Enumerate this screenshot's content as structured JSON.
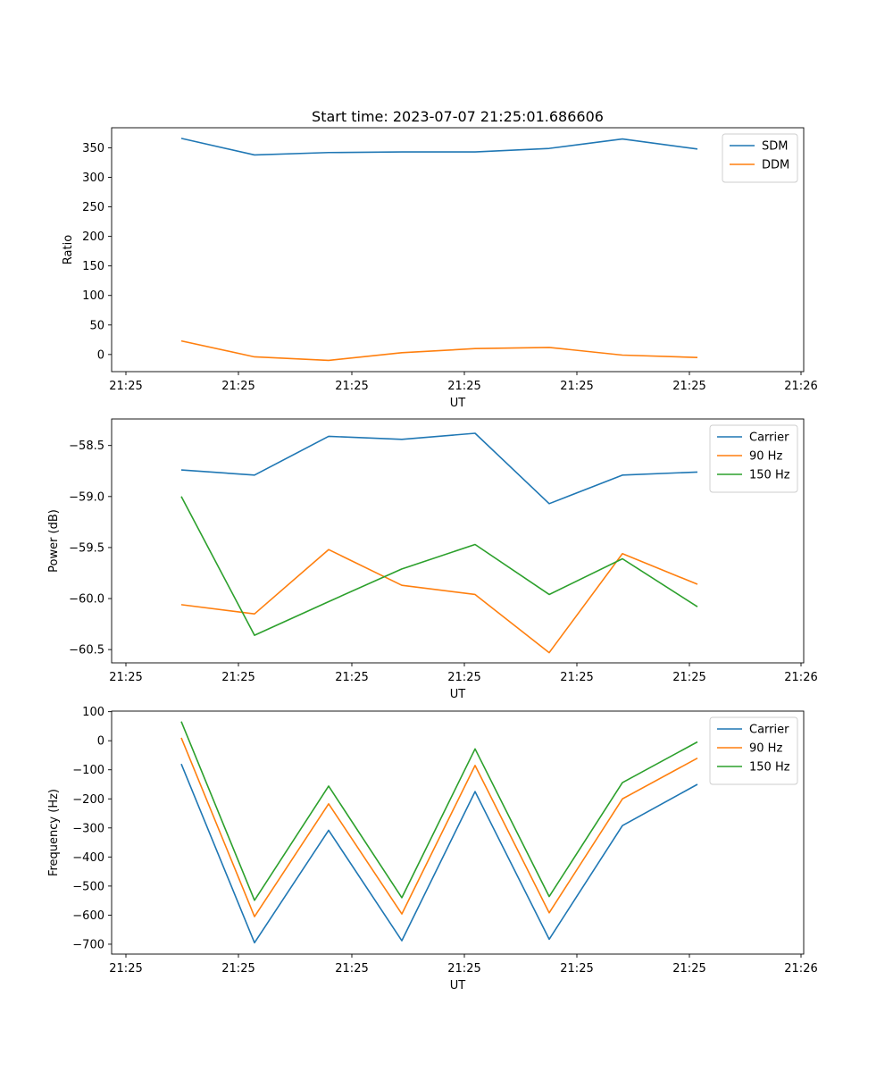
{
  "chart_data": [
    {
      "type": "line",
      "title": "Start time: 2023-07-07 21:25:01.686606",
      "xlabel": "UT",
      "ylabel": "Ratio",
      "x_tick_labels": [
        "21:25",
        "21:25",
        "21:25",
        "21:25",
        "21:25",
        "21:25",
        "21:26"
      ],
      "y_ticks": [
        0,
        50,
        100,
        150,
        200,
        250,
        300,
        350
      ],
      "y_tick_labels": [
        "0",
        "50",
        "100",
        "150",
        "200",
        "250",
        "300",
        "350"
      ],
      "ylim": [
        -29,
        384
      ],
      "legend_position": "top-right",
      "series": [
        {
          "name": "SDM",
          "color": "#1f77b4",
          "values": [
            366,
            338,
            342,
            343,
            343,
            349,
            365,
            348
          ]
        },
        {
          "name": "DDM",
          "color": "#ff7f0e",
          "values": [
            23,
            -4,
            -10,
            3,
            10,
            12,
            -1,
            -5
          ]
        }
      ]
    },
    {
      "type": "line",
      "title": "",
      "xlabel": "UT",
      "ylabel": "Power (dB)",
      "x_tick_labels": [
        "21:25",
        "21:25",
        "21:25",
        "21:25",
        "21:25",
        "21:25",
        "21:26"
      ],
      "y_ticks": [
        -58.5,
        -59.0,
        -59.5,
        -60.0,
        -60.5
      ],
      "y_tick_labels": [
        "−58.5",
        "−59.0",
        "−59.5",
        "−60.0",
        "−60.5"
      ],
      "ylim": [
        -60.63,
        -58.24
      ],
      "legend_position": "top-right",
      "series": [
        {
          "name": "Carrier",
          "color": "#1f77b4",
          "values": [
            -58.74,
            -58.79,
            -58.41,
            -58.44,
            -58.38,
            -59.07,
            -58.79,
            -58.76
          ]
        },
        {
          "name": "90 Hz",
          "color": "#ff7f0e",
          "values": [
            -60.06,
            -60.15,
            -59.52,
            -59.87,
            -59.96,
            -60.53,
            -59.56,
            -59.86
          ]
        },
        {
          "name": "150 Hz",
          "color": "#2ca02c",
          "values": [
            -59.0,
            -60.36,
            -60.03,
            -59.71,
            -59.47,
            -59.96,
            -59.61,
            -60.08
          ]
        }
      ]
    },
    {
      "type": "line",
      "title": "",
      "xlabel": "UT",
      "ylabel": "Frequency (Hz)",
      "x_tick_labels": [
        "21:25",
        "21:25",
        "21:25",
        "21:25",
        "21:25",
        "21:25",
        "21:26"
      ],
      "y_ticks": [
        100,
        0,
        -100,
        -200,
        -300,
        -400,
        -500,
        -600,
        -700
      ],
      "y_tick_labels": [
        "100",
        "0",
        "−100",
        "−200",
        "−300",
        "−400",
        "−500",
        "−600",
        "−700"
      ],
      "ylim": [
        -734,
        102
      ],
      "legend_position": "top-right",
      "series": [
        {
          "name": "Carrier",
          "color": "#1f77b4",
          "values": [
            -80,
            -695,
            -308,
            -688,
            -175,
            -683,
            -292,
            -150
          ]
        },
        {
          "name": "90 Hz",
          "color": "#ff7f0e",
          "values": [
            10,
            -605,
            -217,
            -596,
            -85,
            -592,
            -200,
            -60
          ]
        },
        {
          "name": "150 Hz",
          "color": "#2ca02c",
          "values": [
            66,
            -549,
            -156,
            -540,
            -28,
            -536,
            -144,
            -4
          ]
        }
      ]
    }
  ]
}
